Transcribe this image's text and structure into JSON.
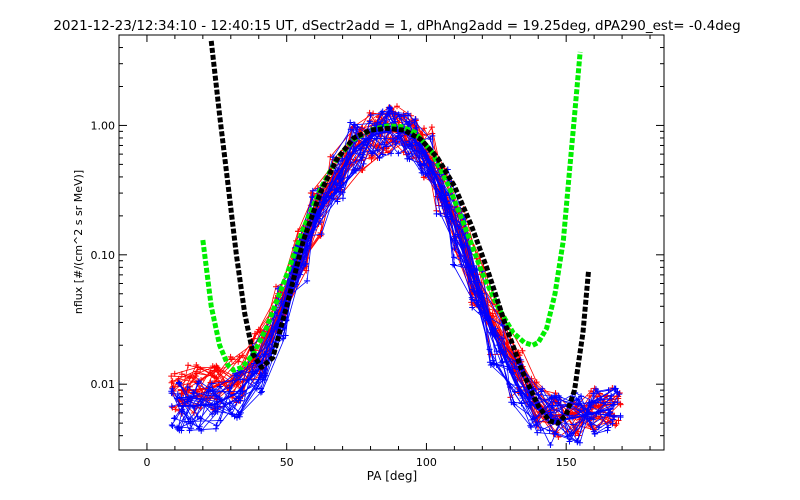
{
  "chart_data": {
    "type": "line",
    "title": "2021-12-23/12:34:10 - 12:40:15 UT, dSectr2add = 1, dPhAng2add = 19.25deg, dPA290_est=  -0.4deg",
    "xlabel": "PA [deg]",
    "ylabel": "nflux [#/(cm^2 s sr MeV)]",
    "xlim": [
      -10,
      185
    ],
    "ylim": [
      0.0031,
      5
    ],
    "yscale": "log",
    "grid": false,
    "x_ticks": [
      {
        "value": 0,
        "label": "0"
      },
      {
        "value": 50,
        "label": "50"
      },
      {
        "value": 100,
        "label": "100"
      },
      {
        "value": 150,
        "label": "150"
      }
    ],
    "y_ticks": [
      {
        "value": 0.01,
        "label": "0.01"
      },
      {
        "value": 0.1,
        "label": "0.10"
      },
      {
        "value": 1,
        "label": "1.00"
      }
    ],
    "series": [
      {
        "kind": "measurements",
        "color": "#ff0000",
        "marker": "plus",
        "x": [
          11,
          17,
          24,
          32,
          40,
          48,
          55,
          61,
          68,
          75,
          82,
          88,
          94,
          100,
          106,
          112,
          118,
          125,
          132,
          139,
          146,
          153,
          160,
          167
        ],
        "y": [
          0.009,
          0.009,
          0.0095,
          0.011,
          0.017,
          0.04,
          0.11,
          0.22,
          0.42,
          0.7,
          0.86,
          0.9,
          0.86,
          0.62,
          0.33,
          0.15,
          0.062,
          0.026,
          0.012,
          0.0072,
          0.0056,
          0.006,
          0.0068,
          0.007
        ]
      },
      {
        "kind": "measurements",
        "color": "#0000ff",
        "marker": "plus",
        "x": [
          11,
          17,
          24,
          32,
          40,
          48,
          55,
          61,
          68,
          75,
          82,
          88,
          94,
          100,
          106,
          112,
          118,
          125,
          132,
          139,
          146,
          153,
          160,
          167
        ],
        "y": [
          0.0068,
          0.0068,
          0.007,
          0.0085,
          0.013,
          0.035,
          0.09,
          0.2,
          0.4,
          0.68,
          0.86,
          0.92,
          0.86,
          0.6,
          0.3,
          0.13,
          0.055,
          0.022,
          0.01,
          0.0066,
          0.0052,
          0.0055,
          0.006,
          0.0065
        ]
      },
      {
        "kind": "fit",
        "color": "#00ee00",
        "style": "dashed-thick",
        "x": [
          20,
          23,
          26,
          29,
          31,
          34,
          38,
          43,
          50,
          56,
          62,
          68,
          74,
          80,
          86,
          91,
          96,
          102,
          108,
          114,
          120,
          126,
          131,
          135,
          138,
          140,
          143,
          146,
          149,
          151,
          153,
          155
        ],
        "y": [
          0.13,
          0.04,
          0.02,
          0.014,
          0.0128,
          0.0135,
          0.017,
          0.028,
          0.07,
          0.16,
          0.32,
          0.55,
          0.78,
          0.92,
          0.99,
          0.98,
          0.88,
          0.62,
          0.34,
          0.16,
          0.072,
          0.038,
          0.025,
          0.021,
          0.02,
          0.021,
          0.027,
          0.05,
          0.13,
          0.4,
          1.2,
          3.7
        ]
      },
      {
        "kind": "fit",
        "color": "#000000",
        "style": "dashed-thick",
        "x": [
          23,
          26,
          29,
          32,
          35,
          38,
          41,
          45,
          50,
          56,
          62,
          68,
          74,
          80,
          86,
          92,
          98,
          104,
          110,
          116,
          122,
          128,
          134,
          140,
          144,
          147,
          150,
          153,
          156,
          158
        ],
        "y": [
          4.5,
          1.2,
          0.35,
          0.1,
          0.035,
          0.017,
          0.0135,
          0.016,
          0.04,
          0.13,
          0.3,
          0.55,
          0.8,
          0.92,
          0.95,
          0.92,
          0.78,
          0.56,
          0.34,
          0.17,
          0.075,
          0.03,
          0.013,
          0.0068,
          0.0052,
          0.005,
          0.0058,
          0.009,
          0.025,
          0.075
        ]
      }
    ]
  }
}
